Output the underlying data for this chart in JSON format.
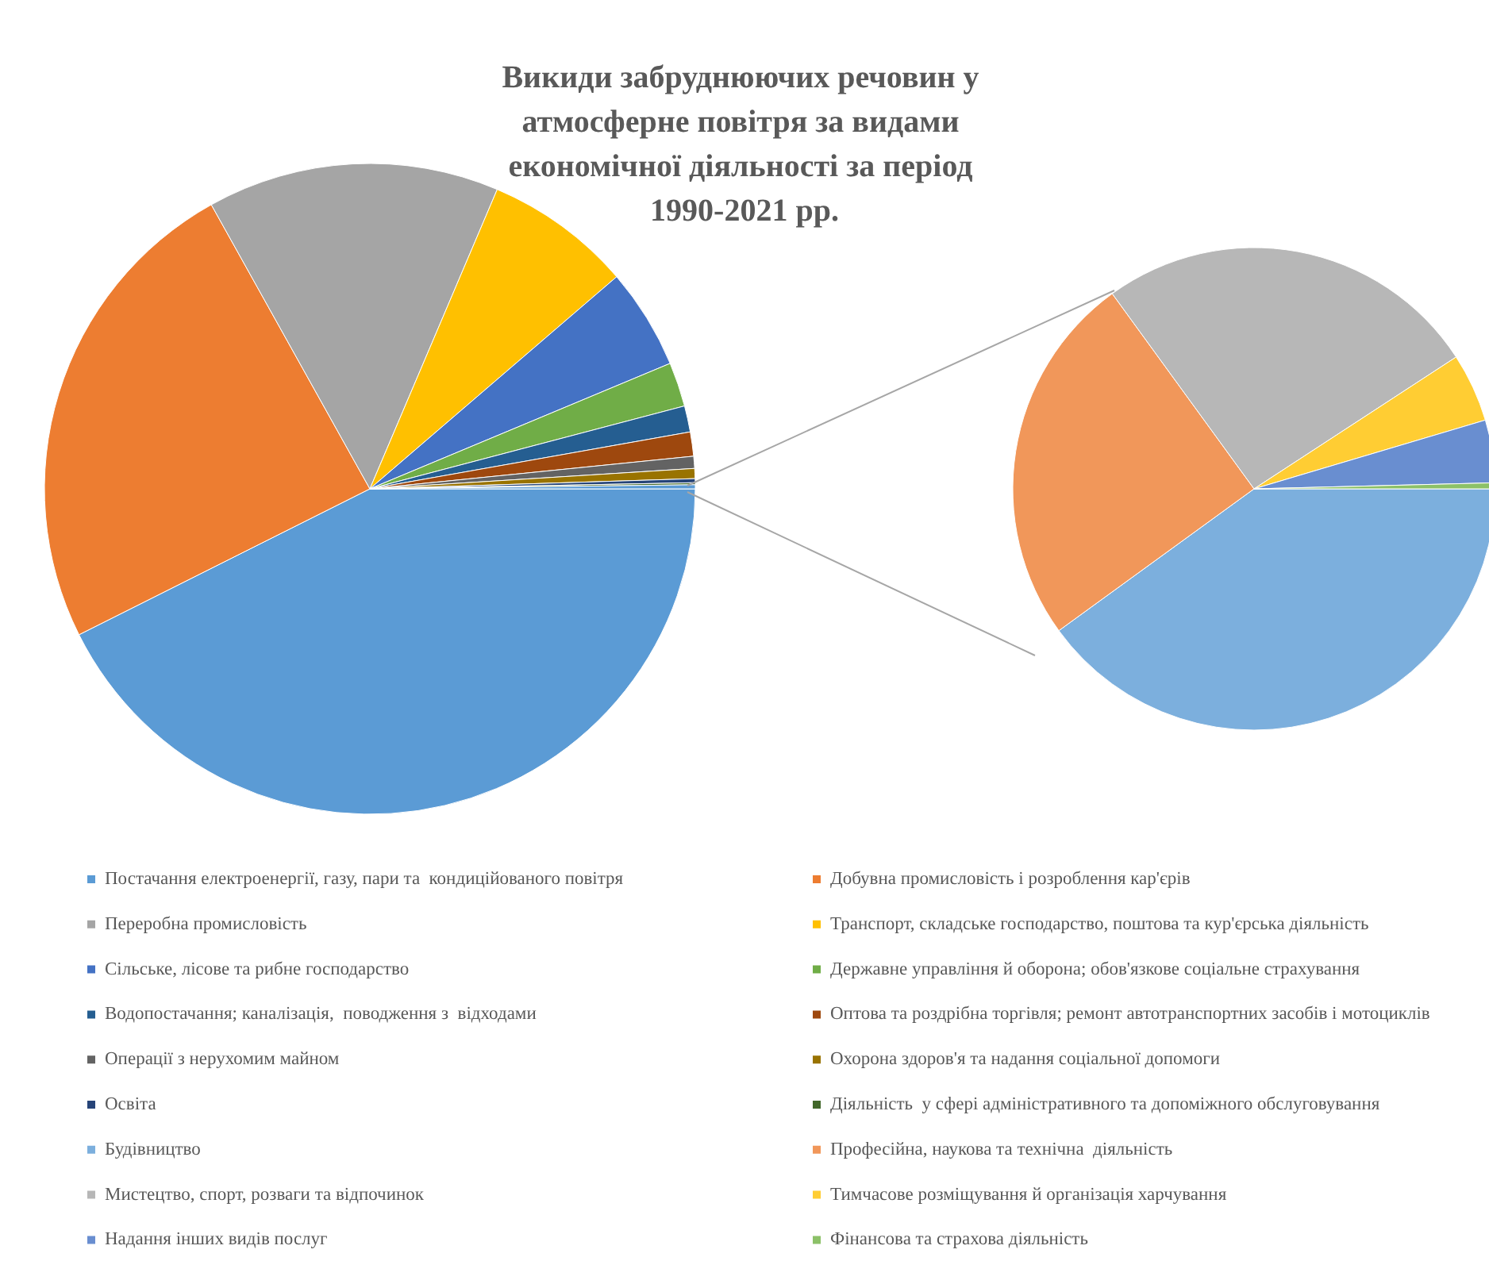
{
  "chart_data": [
    {
      "type": "pie",
      "title": "Викиди забруднюючих речовин у атмосферне повітря за видами економічної діяльності за період 1990-2021 рр.",
      "categories": [
        "Постачання електроенергії, газу, пари та  кондиційованого повітря",
        "Добувна промисловість і розроблення кар'єрів",
        "Переробна промисловість",
        "Транспорт, складське господарство, поштова та кур'єрська діяльність",
        "Сільське, лісове та рибне господарство",
        "Державне управління й оборона; обов'язкове соціальне страхування",
        "Водопостачання; каналізація,  поводження з  відходами",
        "Оптова та роздрібна торгівля; ремонт автотранспортних засобів і мотоциклів",
        "Операції з нерухомим майном",
        "Охорона здоров'я та надання соціальної допомоги",
        "Освіта",
        "Діяльність  у сфері адміністративного та допоміжного обслуговування",
        null
      ],
      "values": [
        42.6,
        24.3,
        14.5,
        7.3,
        5,
        2.2,
        1.3,
        1.2,
        0.6,
        0.5,
        0.2,
        0.1,
        0.2
      ],
      "colors": [
        "#5b9bd5",
        "#ed7d31",
        "#a5a5a5",
        "#ffc000",
        "#4472c4",
        "#70ad47",
        "#255e91",
        "#9e480e",
        "#636363",
        "#997300",
        "#264478",
        "#43682b",
        "#5b9bd5"
      ],
      "legend": "bottom"
    },
    {
      "type": "pie",
      "categories": [
        "Будівництво",
        "Професійна, наукова та технічна  діяльність",
        "Мистецтво, спорт, розваги та відпочинок",
        "Тимчасове розміщування й організація харчування",
        "Надання інших видів послуг",
        "Фінансова та страхова діяльність"
      ],
      "values": [
        40,
        25,
        25.8,
        4.6,
        4.2,
        0.4
      ],
      "colors": [
        "#7cafdd",
        "#f1975a",
        "#b7b7b7",
        "#ffcd33",
        "#698ed0",
        "#8cc168"
      ],
      "legend": "bottom"
    }
  ]
}
